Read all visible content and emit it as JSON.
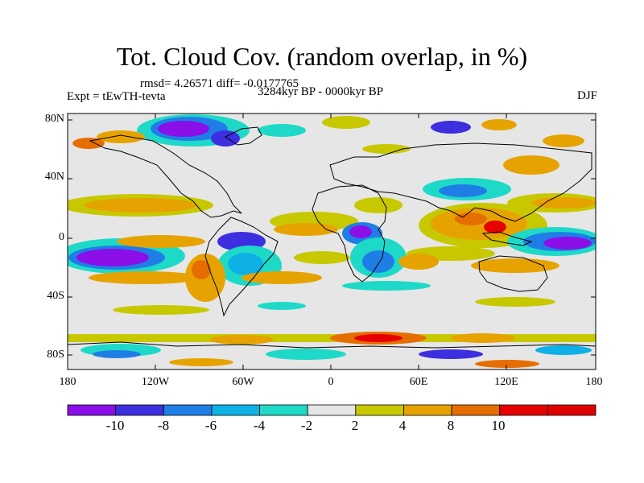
{
  "title": "Tot. Cloud Cov. (random overlap, in %)",
  "stats_line": "rmsd= 4.26571  diff= -0.0177765",
  "experiment_label": "Expt = tEwTH-tevta",
  "period_label": "3284kyr BP - 0000kyr BP",
  "season_label": "DJF",
  "lat_ticks": [
    "80N",
    "40N",
    "0",
    "40S",
    "80S"
  ],
  "lon_ticks": [
    "180",
    "120W",
    "60W",
    "0",
    "60E",
    "120E",
    "180"
  ],
  "colorbar": {
    "labels": [
      "-10",
      "-8",
      "-6",
      "-4",
      "-2",
      "2",
      "4",
      "8",
      "10"
    ],
    "colors": [
      "#8a0fe8",
      "#3d2ee0",
      "#1f7ee6",
      "#0fb0e6",
      "#1ed9c8",
      "#e6e6e6",
      "#c8c800",
      "#e6a300",
      "#e66e00",
      "#e60000",
      "#e00000"
    ]
  },
  "palette": {
    "neutral": "#e6e6e6",
    "coast": "#000000"
  }
}
